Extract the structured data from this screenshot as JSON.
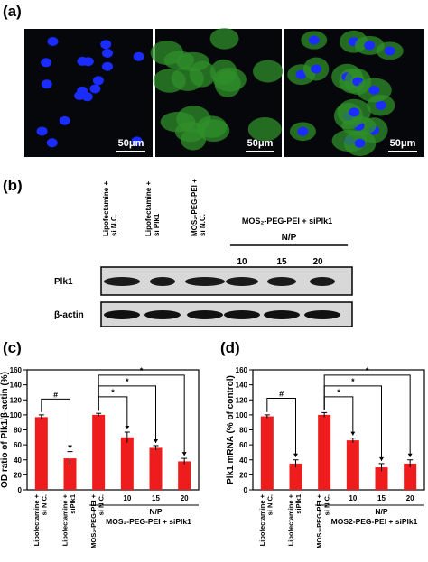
{
  "panels": {
    "a": "(a)",
    "b": "(b)",
    "c": "(c)",
    "d": "(d)"
  },
  "microscopy": {
    "scale_bars": [
      "50μm",
      "50μm",
      "50μm"
    ]
  },
  "blot": {
    "columns": [
      [
        "Lipofectamine +",
        "si N.C."
      ],
      [
        "Lipofectamine +",
        "si Plk1"
      ],
      [
        "MOS₂-PEG-PEI +",
        "si N.C."
      ]
    ],
    "group_label": "MOS₂-PEG-PEI + siPlk1",
    "np_label": "N/P",
    "np_values": [
      "10",
      "15",
      "20"
    ],
    "rows": [
      "Plk1",
      "β-actin"
    ]
  },
  "chart_data": [
    {
      "type": "bar",
      "ylabel": "OD ratio of Plk1/β-actin (%)",
      "categories": [
        [
          "Lipofectamine +",
          "si N.C."
        ],
        [
          "Lipofectamine +",
          "siPlk1"
        ],
        [
          "MOS₂-PEG-PEI +",
          "si N.C."
        ],
        "10",
        "15",
        "20"
      ],
      "series": [
        {
          "color": "#ee1c1c",
          "values": [
            97,
            42,
            100,
            70,
            56,
            38
          ],
          "errors": [
            3,
            9,
            2,
            7,
            3,
            4
          ]
        }
      ],
      "ylim": [
        0,
        160
      ],
      "yticks": [
        0,
        20,
        40,
        60,
        80,
        100,
        120,
        140,
        160
      ],
      "group_label": "N/P",
      "group_name": "MOS₂-PEG-PEI + siPlk1",
      "significance": [
        "#",
        "*",
        "*",
        "*"
      ]
    },
    {
      "type": "bar",
      "ylabel": "Plk1 mRNA (% of control)",
      "categories": [
        [
          "Lipofectamine +",
          "si N.C."
        ],
        [
          "Lipofectamine +",
          "siPlk1"
        ],
        [
          "MOS₂-PEG-PEI +",
          "si N.C."
        ],
        "10",
        "15",
        "20"
      ],
      "series": [
        {
          "color": "#ee1c1c",
          "values": [
            98,
            35,
            100,
            66,
            30,
            35
          ],
          "errors": [
            2,
            5,
            3,
            3,
            5,
            5
          ]
        }
      ],
      "ylim": [
        0,
        160
      ],
      "yticks": [
        0,
        20,
        40,
        60,
        80,
        100,
        120,
        140,
        160
      ],
      "group_label": "N/P",
      "group_name": "MOS2-PEG-PEI + siPlk1",
      "significance": [
        "#",
        "*",
        "*",
        "*"
      ]
    }
  ]
}
